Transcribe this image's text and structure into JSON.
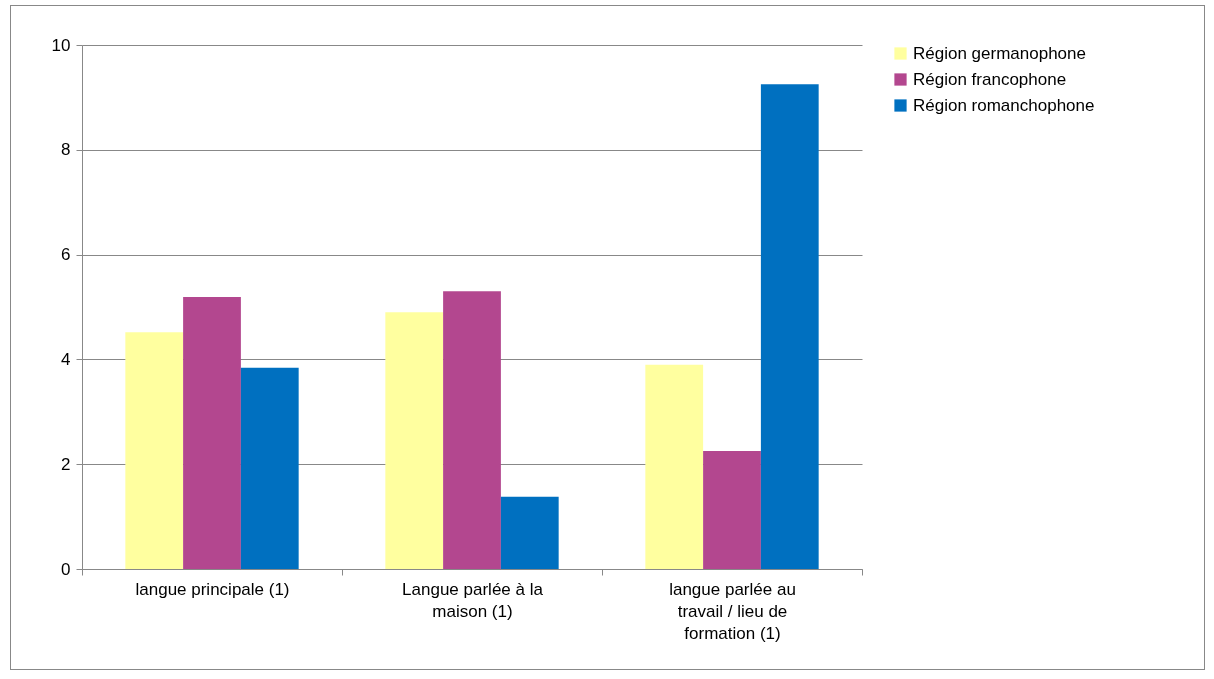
{
  "chart_data": {
    "type": "bar",
    "categories": [
      "langue principale (1)",
      "Langue parlée à la maison (1)",
      "langue parlée au travail / lieu de formation (1)"
    ],
    "series": [
      {
        "name": "Région germanophone",
        "color": "#ffff9f",
        "values": [
          4.52,
          4.9,
          3.9
        ]
      },
      {
        "name": "Région francophone",
        "color": "#b3478f",
        "values": [
          5.19,
          5.3,
          2.25
        ]
      },
      {
        "name": "Région romanchophone",
        "color": "#0070c0",
        "values": [
          3.84,
          1.38,
          9.25
        ]
      }
    ],
    "ylim": [
      0,
      10
    ],
    "yticks": [
      0,
      2,
      4,
      6,
      8,
      10
    ],
    "grid": "y",
    "legend": "right"
  }
}
